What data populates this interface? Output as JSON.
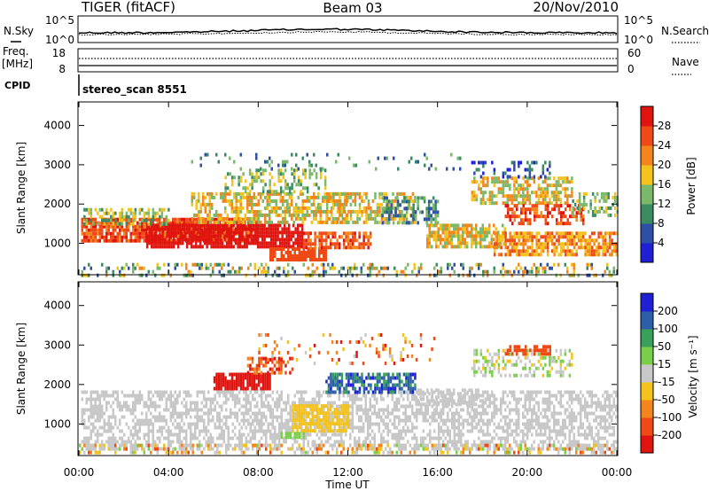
{
  "header": {
    "title": "TIGER (fitACF)",
    "beam": "Beam 03",
    "date": "20/Nov/2010"
  },
  "top_panels": {
    "nsky_label": "N.Sky",
    "nsky_ticks": [
      "10^5",
      "10^0"
    ],
    "nsearch_label": "N.Search",
    "nsearch_ticks": [
      "10^5",
      "10^0"
    ],
    "freq_label": "Freq.",
    "freq_unit": "[MHz]",
    "freq_ticks": [
      "18",
      "8"
    ],
    "nave_label": "Nave",
    "nave_ticks": [
      "60",
      "0"
    ],
    "cpid_label": "CPID",
    "cpid_value": "stereo_scan 8551"
  },
  "chart_data": [
    {
      "type": "heatmap",
      "ylabel": "Slant Range [km]",
      "yticks": [
        1000,
        2000,
        3000,
        4000
      ],
      "ylim": [
        200,
        4600
      ],
      "xlim": [
        0,
        24
      ],
      "colorbar_label": "Power [dB]",
      "colorbar_ticks": [
        4,
        8,
        12,
        16,
        20,
        24,
        28
      ],
      "colorbar_range": [
        0,
        32
      ],
      "colors": [
        "#1f1fd6",
        "#2d4fa6",
        "#3a8a62",
        "#7ab86a",
        "#f3c21c",
        "#f4851c",
        "#ef4a16",
        "#e0140f"
      ]
    },
    {
      "type": "heatmap",
      "ylabel": "Slant Range [km]",
      "yticks": [
        1000,
        2000,
        3000,
        4000
      ],
      "ylim": [
        200,
        4600
      ],
      "xlim": [
        0,
        24
      ],
      "xlabel": "Time UT",
      "xticks": [
        "00:00",
        "04:00",
        "08:00",
        "12:00",
        "16:00",
        "20:00",
        "00:00"
      ],
      "colorbar_label": "Velocity [m s⁻¹]",
      "colorbar_ticks": [
        "200",
        "100",
        "50",
        "15",
        "-15",
        "-50",
        "-100",
        "-200"
      ],
      "colors": [
        "#e0140f",
        "#ef4a16",
        "#f4851c",
        "#f3c21c",
        "#c8c8c8",
        "#7acf4a",
        "#38a05a",
        "#2d5fa8",
        "#1f1fd6"
      ]
    }
  ]
}
